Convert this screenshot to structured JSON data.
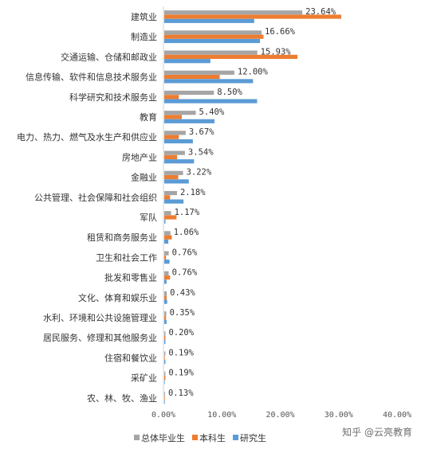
{
  "chart_data": {
    "type": "bar",
    "orientation": "horizontal",
    "categories": [
      "建筑业",
      "制造业",
      "交通运输、仓储和邮政业",
      "信息传输、软件和信息技术服务业",
      "科学研究和技术服务业",
      "教育",
      "电力、热力、燃气及水生产和供应业",
      "房地产业",
      "金融业",
      "公共管理、社会保障和社会组织",
      "军队",
      "租赁和商务服务业",
      "卫生和社会工作",
      "批发和零售业",
      "文化、体育和娱乐业",
      "水利、环境和公共设施管理业",
      "居民服务、修理和其他服务业",
      "住宿和餐饮业",
      "采矿业",
      "农、林、牧、渔业"
    ],
    "series": [
      {
        "name": "总体毕业生",
        "color": "#a5a5a5",
        "values": [
          23.64,
          16.66,
          15.93,
          12.0,
          8.5,
          5.4,
          3.67,
          3.54,
          3.22,
          2.18,
          1.17,
          1.06,
          0.76,
          0.76,
          0.43,
          0.35,
          0.2,
          0.19,
          0.19,
          0.13
        ]
      },
      {
        "name": "本科生",
        "color": "#ed7d31",
        "values": [
          30.3,
          17.0,
          22.8,
          9.5,
          2.5,
          3.0,
          2.5,
          2.2,
          2.4,
          1.0,
          2.1,
          1.3,
          0.3,
          1.0,
          0.4,
          0.3,
          0.2,
          0.1,
          0.2,
          0.1
        ]
      },
      {
        "name": "研究生",
        "color": "#5b9bd5",
        "values": [
          15.4,
          16.4,
          7.9,
          15.2,
          15.9,
          8.6,
          4.9,
          5.1,
          4.2,
          3.3,
          0.2,
          0.7,
          0.9,
          0.4,
          0.5,
          0.4,
          0.2,
          0.2,
          0.1,
          0.1
        ]
      }
    ],
    "value_labels": [
      "23.64%",
      "16.66%",
      "15.93%",
      "12.00%",
      "8.50%",
      "5.40%",
      "3.67%",
      "3.54%",
      "3.22%",
      "2.18%",
      "1.17%",
      "1.06%",
      "0.76%",
      "0.76%",
      "0.43%",
      "0.35%",
      "0.20%",
      "0.19%",
      "0.19%",
      "0.13%"
    ],
    "xticks": [
      "0.00%",
      "10.00%",
      "20.00%",
      "30.00%",
      "40.00%"
    ],
    "xlim": [
      0,
      40
    ],
    "grid": false,
    "legend": "bottom"
  },
  "watermark": "知乎 @云亮教育"
}
